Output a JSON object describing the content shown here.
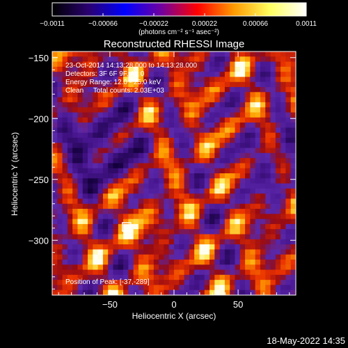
{
  "chart_data": {
    "type": "heatmap",
    "title": "Reconstructed RHESSI Image",
    "xlabel": "Heliocentric X (arcsec)",
    "ylabel": "Heliocentric Y (arcsec)",
    "xlim": [
      -95,
      95
    ],
    "ylim": [
      -345,
      -145
    ],
    "x_ticks": [
      {
        "value": -50,
        "label": "−50"
      },
      {
        "value": 0,
        "label": "0"
      },
      {
        "value": 50,
        "label": "50"
      }
    ],
    "y_ticks": [
      {
        "value": -150,
        "label": "−150"
      },
      {
        "value": -200,
        "label": "−200"
      },
      {
        "value": -250,
        "label": "−250"
      },
      {
        "value": -300,
        "label": "−300"
      }
    ],
    "colorbar": {
      "min": -0.0011,
      "max": 0.0011,
      "ticks": [
        {
          "value": -0.0011,
          "label": "−0.0011"
        },
        {
          "value": -0.00066,
          "label": "−0.00066"
        },
        {
          "value": -0.00022,
          "label": "−0.00022"
        },
        {
          "value": 0.00022,
          "label": "0.00022"
        },
        {
          "value": 0.00066,
          "label": "0.00066"
        },
        {
          "value": 0.0011,
          "label": "0.0011"
        }
      ],
      "units": "(photons cm⁻² s⁻¹ asec⁻²)",
      "colormap": [
        "#000000",
        "#2a0070",
        "#0000ff",
        "#7000a0",
        "#ff0000",
        "#ff9a00",
        "#ffff60",
        "#ffffff"
      ]
    },
    "annotations": {
      "time_range": "23-Oct-2014 14:13:28.000 to 14:13:28.000",
      "detectors": "Detectors: 3F 6F 9F, Att 0",
      "energy_range": "Energy Range: 12.0 - 25.0 keV",
      "clean": "Clean     Total counts: 2.03E+03",
      "peak": "Position of Peak: [-37,-289]"
    },
    "peak": {
      "x": -37,
      "y": -289
    },
    "grid": false
  },
  "footer": {
    "date": "18-May-2022 14:35"
  }
}
